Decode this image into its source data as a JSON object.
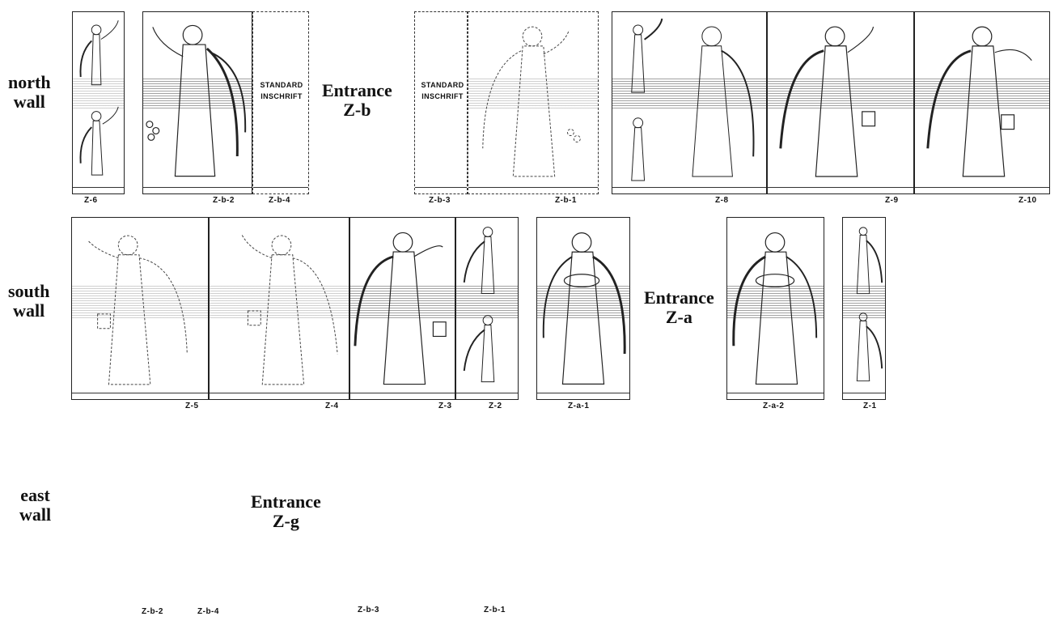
{
  "walls": {
    "north": {
      "line1": "north",
      "line2": "wall"
    },
    "south": {
      "line1": "south",
      "line2": "wall"
    },
    "east": {
      "line1": "east",
      "line2": "wall"
    }
  },
  "entrances": {
    "zb": {
      "line1": "Entrance",
      "line2": "Z-b"
    },
    "za": {
      "line1": "Entrance",
      "line2": "Z-a"
    },
    "zg": {
      "line1": "Entrance",
      "line2": "Z-g"
    }
  },
  "inscriptions": {
    "left": {
      "line1": "STANDARD",
      "line2": "INSCHRIFT"
    },
    "right": {
      "line1": "STANDARD",
      "line2": "INSCHRIFT"
    }
  },
  "north_codes": {
    "z6": "Z-6",
    "zb2": "Z-b-2",
    "zb4": "Z-b-4",
    "zb3": "Z-b-3",
    "zb1": "Z-b-1",
    "z8": "Z-8",
    "z9": "Z-9",
    "z10": "Z-10"
  },
  "south_codes": {
    "z5": "Z-5",
    "z4": "Z-4",
    "z3": "Z-3",
    "z2": "Z-2",
    "za1": "Z-a-1",
    "za2": "Z-a-2",
    "z1": "Z-1"
  },
  "east_codes": {
    "zb2": "Z-b-2",
    "zb4": "Z-b-4",
    "zb3": "Z-b-3",
    "zb1": "Z-b-1"
  },
  "colors": {
    "ink": "#111111",
    "paper": "#ffffff"
  }
}
